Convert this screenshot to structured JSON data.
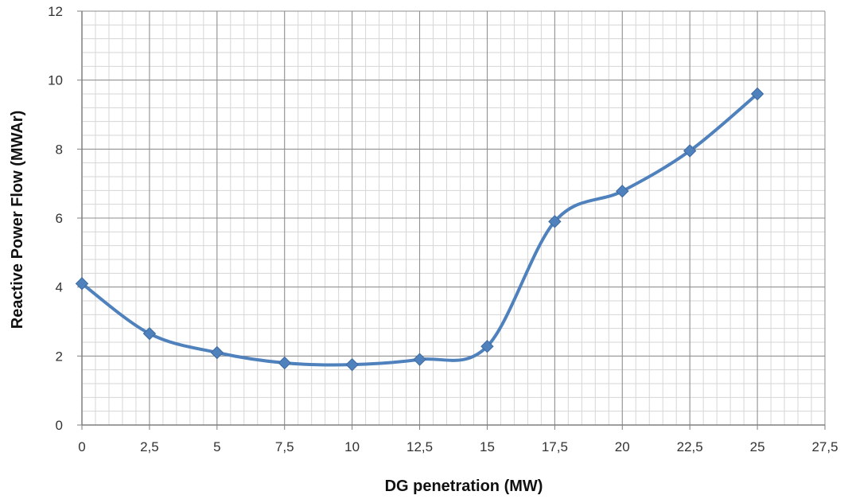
{
  "chart_data": {
    "type": "line",
    "title": "",
    "xlabel": "DG penetration (MW)",
    "ylabel": "Reactive Power Flow (MWAr)",
    "xlim": [
      0,
      27.5
    ],
    "ylim": [
      0,
      12
    ],
    "x_ticks": [
      0,
      2.5,
      5,
      7.5,
      10,
      12.5,
      15,
      17.5,
      20,
      22.5,
      25,
      27.5
    ],
    "x_tick_labels": [
      "0",
      "2,5",
      "5",
      "7,5",
      "10",
      "12,5",
      "15",
      "17,5",
      "20",
      "22,5",
      "25",
      "27,5"
    ],
    "y_ticks": [
      0,
      2,
      4,
      6,
      8,
      10,
      12
    ],
    "y_tick_labels": [
      "0",
      "2",
      "4",
      "6",
      "8",
      "10",
      "12"
    ],
    "grid": true,
    "legend": "none",
    "series": [
      {
        "x": [
          0,
          2.5,
          5,
          7.5,
          10,
          12.5,
          15,
          17.5,
          20,
          22.5,
          25
        ],
        "values": [
          4.1,
          2.65,
          2.1,
          1.8,
          1.75,
          1.9,
          2.28,
          5.9,
          6.78,
          7.95,
          9.6
        ],
        "color": "#4F81BD",
        "marker": "diamond",
        "smooth": true
      }
    ]
  }
}
